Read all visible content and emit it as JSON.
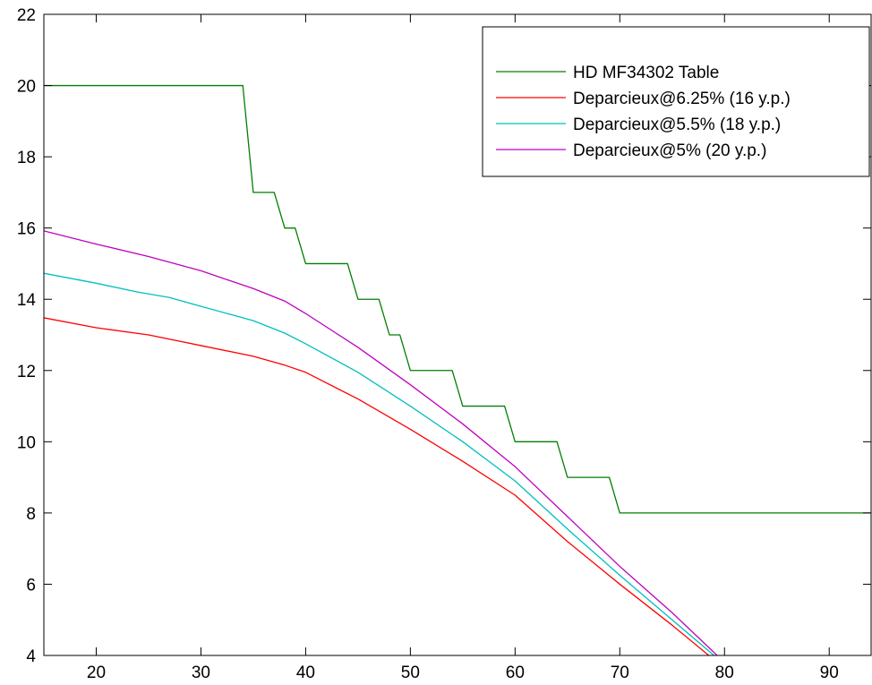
{
  "chart_data": {
    "type": "line",
    "title": "",
    "xlabel": "",
    "ylabel": "",
    "xlim": [
      15,
      94
    ],
    "ylim": [
      4,
      22
    ],
    "x_ticks": [
      20,
      30,
      40,
      50,
      60,
      70,
      80,
      90
    ],
    "y_ticks": [
      4,
      6,
      8,
      10,
      12,
      14,
      16,
      18,
      20,
      22
    ],
    "grid": false,
    "legend_position": "top-right",
    "series": [
      {
        "name": "HD MF34302 Table",
        "color": "#007f00",
        "step": true,
        "points": [
          [
            15,
            20
          ],
          [
            34,
            20
          ],
          [
            35,
            17
          ],
          [
            37,
            17
          ],
          [
            38,
            16
          ],
          [
            39,
            16
          ],
          [
            40,
            15
          ],
          [
            44,
            15
          ],
          [
            45,
            14
          ],
          [
            47,
            14
          ],
          [
            48,
            13
          ],
          [
            49,
            13
          ],
          [
            50,
            12
          ],
          [
            54,
            12
          ],
          [
            55,
            11
          ],
          [
            59,
            11
          ],
          [
            60,
            10
          ],
          [
            64,
            10
          ],
          [
            65,
            9
          ],
          [
            69,
            9
          ],
          [
            70,
            8
          ],
          [
            94,
            8
          ]
        ]
      },
      {
        "name": "Deparcieux@6.25% (16 y.p.)",
        "color": "#ff0000",
        "step": false,
        "points": [
          [
            15,
            13.48
          ],
          [
            20,
            13.2
          ],
          [
            25,
            13.0
          ],
          [
            30,
            12.7
          ],
          [
            35,
            12.4
          ],
          [
            38,
            12.15
          ],
          [
            40,
            11.95
          ],
          [
            45,
            11.2
          ],
          [
            50,
            10.35
          ],
          [
            55,
            9.45
          ],
          [
            60,
            8.5
          ],
          [
            65,
            7.2
          ],
          [
            70,
            6.0
          ],
          [
            75,
            4.85
          ],
          [
            78.5,
            4.0
          ]
        ]
      },
      {
        "name": "Deparcieux@5.5% (18 y.p.)",
        "color": "#00bfbf",
        "step": false,
        "points": [
          [
            15,
            14.73
          ],
          [
            20,
            14.45
          ],
          [
            24,
            14.2
          ],
          [
            27,
            14.05
          ],
          [
            30,
            13.8
          ],
          [
            35,
            13.4
          ],
          [
            38,
            13.05
          ],
          [
            40,
            12.75
          ],
          [
            45,
            11.95
          ],
          [
            50,
            11.0
          ],
          [
            55,
            10.0
          ],
          [
            60,
            8.9
          ],
          [
            65,
            7.55
          ],
          [
            70,
            6.25
          ],
          [
            75,
            5.0
          ],
          [
            79,
            4.0
          ]
        ]
      },
      {
        "name": "Deparcieux@5% (20 y.p.)",
        "color": "#bf00bf",
        "step": false,
        "points": [
          [
            15,
            15.92
          ],
          [
            20,
            15.55
          ],
          [
            25,
            15.2
          ],
          [
            30,
            14.8
          ],
          [
            35,
            14.3
          ],
          [
            38,
            13.95
          ],
          [
            40,
            13.6
          ],
          [
            45,
            12.65
          ],
          [
            50,
            11.6
          ],
          [
            55,
            10.5
          ],
          [
            60,
            9.3
          ],
          [
            65,
            7.9
          ],
          [
            70,
            6.5
          ],
          [
            75,
            5.2
          ],
          [
            79.3,
            4.0
          ]
        ]
      }
    ]
  }
}
